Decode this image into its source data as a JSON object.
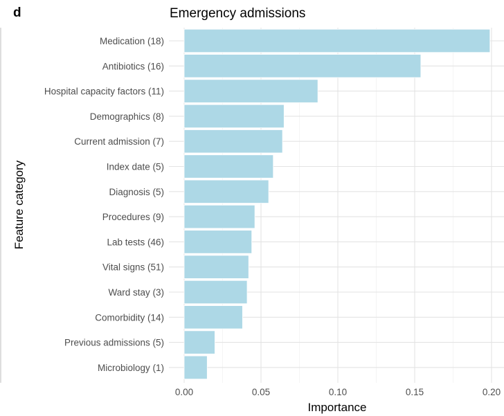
{
  "panel_label": "d",
  "colors": {
    "bar": "#add8e6",
    "background": "#ffffff",
    "grid": "#e3e3e3"
  },
  "chart_data": {
    "type": "bar",
    "orientation": "horizontal",
    "title": "Emergency admissions",
    "xlabel": "Importance",
    "ylabel": "Feature category",
    "xlim": [
      0,
      0.2
    ],
    "x_ticks": [
      0.0,
      0.05,
      0.1,
      0.15,
      0.2
    ],
    "x_tick_labels": [
      "0.00",
      "0.05",
      "0.10",
      "0.15",
      "0.20"
    ],
    "grid": true,
    "legend": "none",
    "categories": [
      "Medication (18)",
      "Antibiotics (16)",
      "Hospital capacity factors (11)",
      "Demographics (8)",
      "Current admission (7)",
      "Index date (5)",
      "Diagnosis (5)",
      "Procedures (9)",
      "Lab tests (46)",
      "Vital signs (51)",
      "Ward stay (3)",
      "Comorbidity (14)",
      "Previous admissions (5)",
      "Microbiology (1)"
    ],
    "values": [
      0.199,
      0.154,
      0.087,
      0.065,
      0.064,
      0.058,
      0.055,
      0.046,
      0.044,
      0.042,
      0.041,
      0.038,
      0.02,
      0.015
    ]
  }
}
